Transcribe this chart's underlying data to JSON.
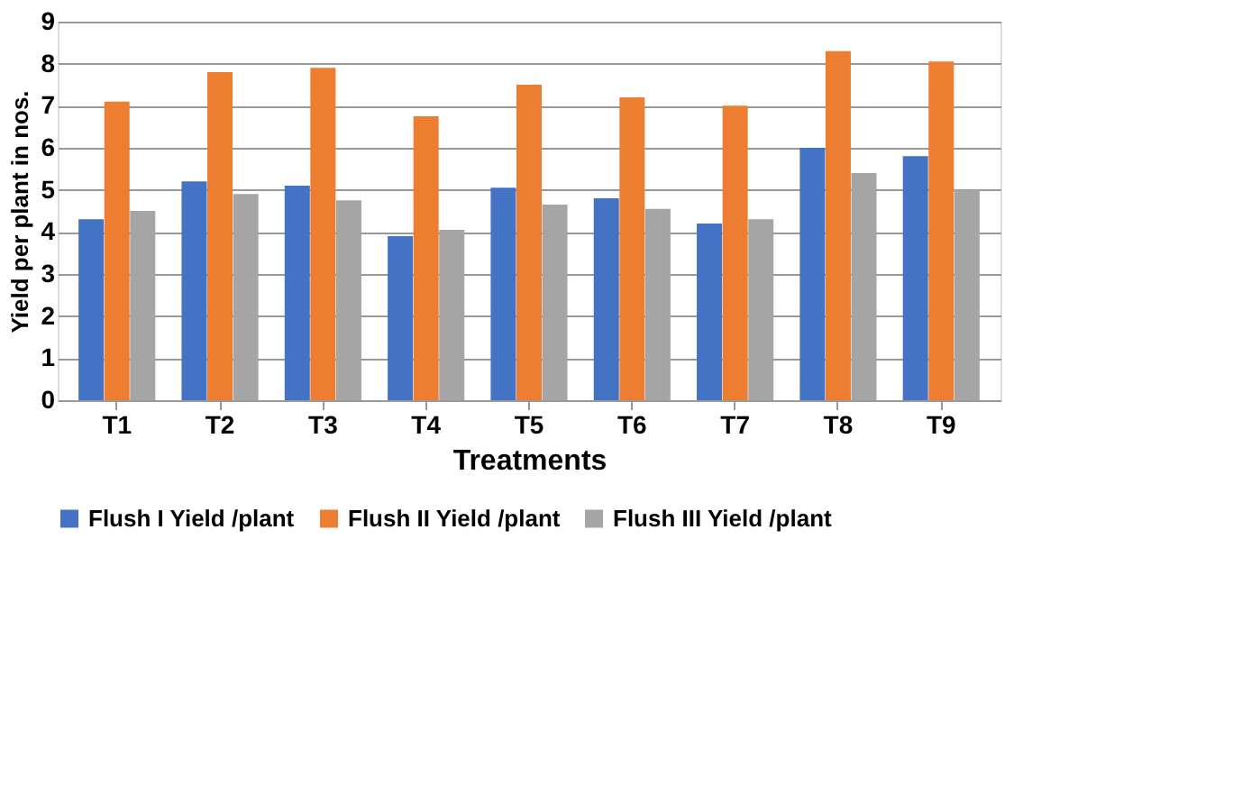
{
  "chart_data": {
    "type": "bar",
    "xlabel": "Treatments",
    "ylabel": "Yield per plant in nos.",
    "categories": [
      "T1",
      "T2",
      "T3",
      "T4",
      "T5",
      "T6",
      "T7",
      "T8",
      "T9"
    ],
    "series": [
      {
        "name": "Flush I Yield /plant",
        "color": "#4472c4",
        "values": [
          4.3,
          5.2,
          5.1,
          3.9,
          5.05,
          4.8,
          4.2,
          6.0,
          5.8
        ]
      },
      {
        "name": "Flush II Yield /plant",
        "color": "#ed7d31",
        "values": [
          7.1,
          7.8,
          7.9,
          6.75,
          7.5,
          7.2,
          7.0,
          8.3,
          8.05
        ]
      },
      {
        "name": "Flush III Yield /plant",
        "color": "#a5a5a5",
        "values": [
          4.5,
          4.9,
          4.75,
          4.05,
          4.65,
          4.55,
          4.3,
          5.4,
          5.0
        ]
      }
    ],
    "ylim": [
      0,
      9
    ],
    "yticks": [
      0,
      1,
      2,
      3,
      4,
      5,
      6,
      7,
      8,
      9
    ],
    "grid": "y",
    "legend": "bottom"
  }
}
